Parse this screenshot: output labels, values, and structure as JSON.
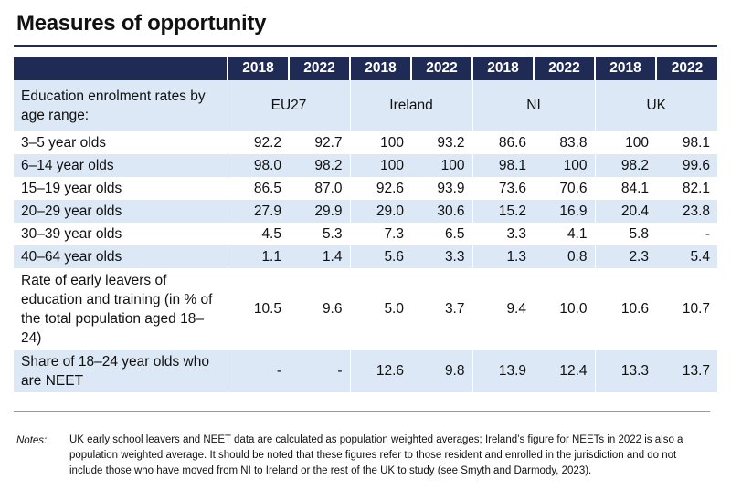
{
  "header": {
    "title": "Measures of opportunity"
  },
  "table": {
    "years": [
      "2018",
      "2022",
      "2018",
      "2022",
      "2018",
      "2022",
      "2018",
      "2022"
    ],
    "group_label": "Education enrolment rates by age range:",
    "regions": [
      "EU27",
      "Ireland",
      "NI",
      "UK"
    ],
    "rows": [
      {
        "label": "3–5 year olds",
        "values": [
          "92.2",
          "92.7",
          "100",
          "93.2",
          "86.6",
          "83.8",
          "100",
          "98.1"
        ]
      },
      {
        "label": "6–14 year olds",
        "values": [
          "98.0",
          "98.2",
          "100",
          "100",
          "98.1",
          "100",
          "98.2",
          "99.6"
        ]
      },
      {
        "label": "15–19 year olds",
        "values": [
          "86.5",
          "87.0",
          "92.6",
          "93.9",
          "73.6",
          "70.6",
          "84.1",
          "82.1"
        ]
      },
      {
        "label": "20–29 year olds",
        "values": [
          "27.9",
          "29.9",
          "29.0",
          "30.6",
          "15.2",
          "16.9",
          "20.4",
          "23.8"
        ]
      },
      {
        "label": "30–39 year olds",
        "values": [
          "4.5",
          "5.3",
          "7.3",
          "6.5",
          "3.3",
          "4.1",
          "5.8",
          "-"
        ]
      },
      {
        "label": "40–64 year olds",
        "values": [
          "1.1",
          "1.4",
          "5.6",
          "3.3",
          "1.3",
          "0.8",
          "2.3",
          "5.4"
        ]
      },
      {
        "label": "Rate of early leavers of education and training (in % of the total population aged 18–24)",
        "values": [
          "10.5",
          "9.6",
          "5.0",
          "3.7",
          "9.4",
          "10.0",
          "10.6",
          "10.7"
        ]
      },
      {
        "label": "Share of 18–24 year olds who are NEET",
        "values": [
          "-",
          "-",
          "12.6",
          "9.8",
          "13.9",
          "12.4",
          "13.3",
          "13.7"
        ]
      }
    ]
  },
  "notes": {
    "label": "Notes:",
    "text": "UK early school leavers and NEET data are calculated as population weighted averages; Ireland’s figure for NEETs in 2022 is also a population weighted average. It should be noted that these figures refer to those resident and enrolled in the jurisdiction and do not include those who have moved from NI to Ireland or the rest of the UK to study (see Smyth and Darmody, 2023)."
  }
}
